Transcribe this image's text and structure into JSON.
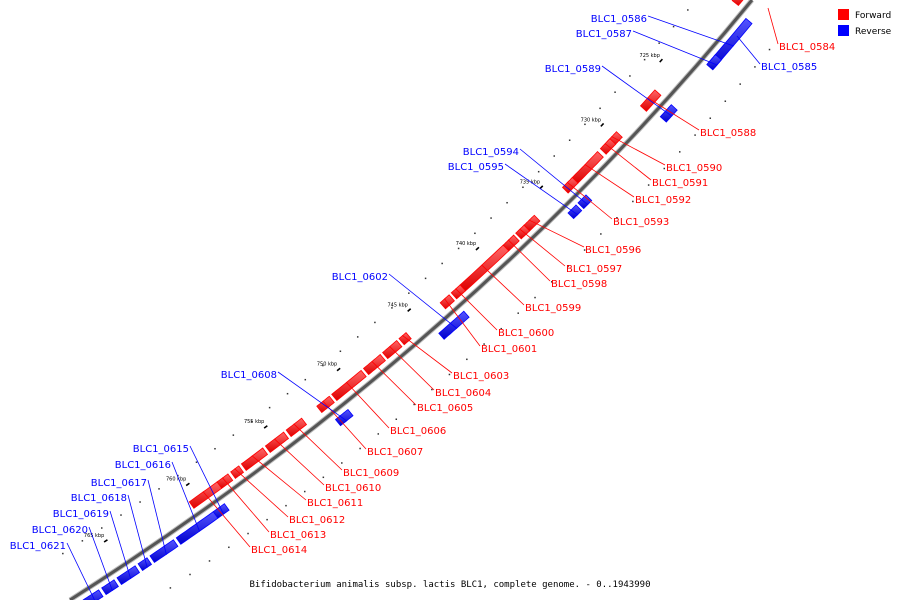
{
  "caption": "Bifidobacterium animalis subsp. lactis BLC1, complete genome. - 0..1943990",
  "colors": {
    "forward": "#ff0000",
    "reverse": "#0000ff",
    "backbone": "#555555"
  },
  "legend": [
    {
      "label": "Forward",
      "color": "#ff0000"
    },
    {
      "label": "Reverse",
      "color": "#0000ff"
    }
  ],
  "ticks": [
    "720 kbp",
    "725 kbp",
    "730 kbp",
    "735 kbp",
    "740 kbp",
    "745 kbp",
    "750 kbp",
    "755 kbp",
    "760 kbp",
    "765 kbp"
  ],
  "genes": [
    {
      "id": "BLC1_0584",
      "strand": "forward"
    },
    {
      "id": "BLC1_0585",
      "strand": "reverse"
    },
    {
      "id": "BLC1_0586",
      "strand": "reverse"
    },
    {
      "id": "BLC1_0587",
      "strand": "reverse"
    },
    {
      "id": "BLC1_0588",
      "strand": "forward"
    },
    {
      "id": "BLC1_0589",
      "strand": "reverse"
    },
    {
      "id": "BLC1_0590",
      "strand": "forward"
    },
    {
      "id": "BLC1_0591",
      "strand": "forward"
    },
    {
      "id": "BLC1_0592",
      "strand": "forward"
    },
    {
      "id": "BLC1_0593",
      "strand": "forward"
    },
    {
      "id": "BLC1_0594",
      "strand": "reverse"
    },
    {
      "id": "BLC1_0595",
      "strand": "reverse"
    },
    {
      "id": "BLC1_0596",
      "strand": "forward"
    },
    {
      "id": "BLC1_0597",
      "strand": "forward"
    },
    {
      "id": "BLC1_0598",
      "strand": "forward"
    },
    {
      "id": "BLC1_0599",
      "strand": "forward"
    },
    {
      "id": "BLC1_0600",
      "strand": "forward"
    },
    {
      "id": "BLC1_0601",
      "strand": "forward"
    },
    {
      "id": "BLC1_0602",
      "strand": "reverse"
    },
    {
      "id": "BLC1_0603",
      "strand": "forward"
    },
    {
      "id": "BLC1_0604",
      "strand": "forward"
    },
    {
      "id": "BLC1_0605",
      "strand": "forward"
    },
    {
      "id": "BLC1_0606",
      "strand": "forward"
    },
    {
      "id": "BLC1_0607",
      "strand": "forward"
    },
    {
      "id": "BLC1_0608",
      "strand": "reverse"
    },
    {
      "id": "BLC1_0609",
      "strand": "forward"
    },
    {
      "id": "BLC1_0610",
      "strand": "forward"
    },
    {
      "id": "BLC1_0611",
      "strand": "forward"
    },
    {
      "id": "BLC1_0612",
      "strand": "forward"
    },
    {
      "id": "BLC1_0613",
      "strand": "forward"
    },
    {
      "id": "BLC1_0614",
      "strand": "forward"
    },
    {
      "id": "BLC1_0615",
      "strand": "reverse"
    },
    {
      "id": "BLC1_0616",
      "strand": "reverse"
    },
    {
      "id": "BLC1_0617",
      "strand": "reverse"
    },
    {
      "id": "BLC1_0618",
      "strand": "reverse"
    },
    {
      "id": "BLC1_0619",
      "strand": "reverse"
    },
    {
      "id": "BLC1_0620",
      "strand": "reverse"
    },
    {
      "id": "BLC1_0621",
      "strand": "reverse"
    }
  ]
}
